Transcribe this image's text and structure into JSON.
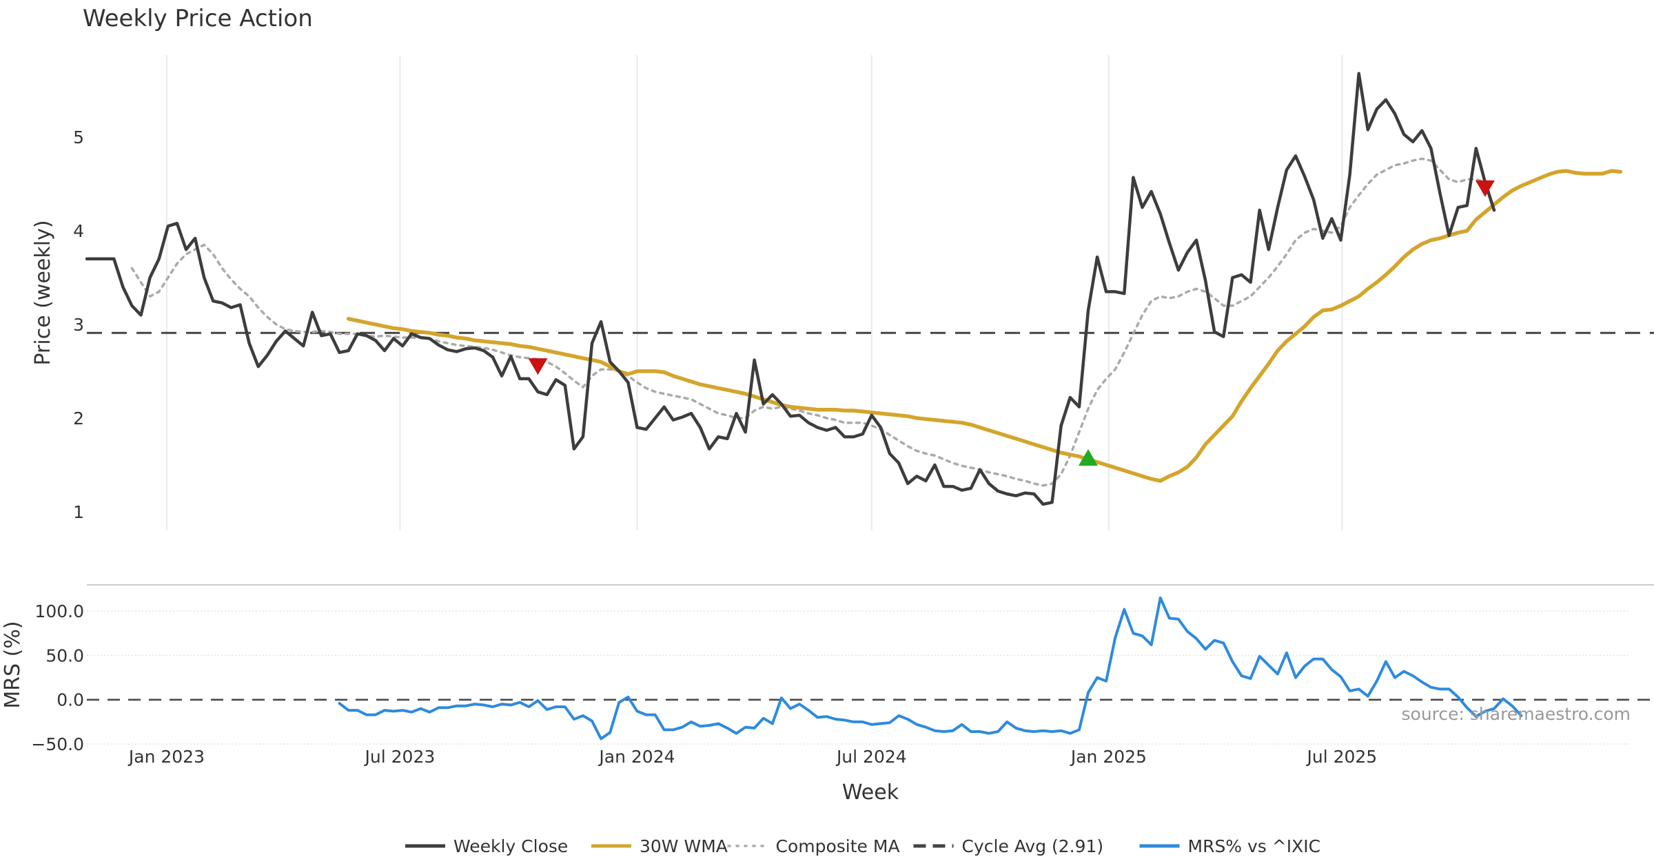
{
  "chart_data": [
    {
      "type": "line",
      "title": "Weekly Price Action",
      "ylabel": "Price (weekly)",
      "ylim": [
        0.8,
        5.95
      ],
      "yticks": [
        1,
        2,
        3,
        4,
        5
      ],
      "grid": "x-only",
      "reference_line": {
        "name": "Cycle Avg (2.91)",
        "value": 2.91
      },
      "markers": [
        {
          "type": "sell",
          "date": "2023-10-16",
          "value": 2.55
        },
        {
          "type": "buy",
          "date": "2024-12-16",
          "value": 1.58
        },
        {
          "type": "sell",
          "date": "2025-10-20",
          "value": 4.45
        }
      ],
      "series": [
        {
          "name": "Weekly Close",
          "color": "#3d3d3d",
          "start": "2022-10-31",
          "values": [
            3.7,
            3.7,
            3.7,
            3.7,
            3.4,
            3.2,
            3.1,
            3.5,
            3.7,
            4.05,
            4.08,
            3.8,
            3.92,
            3.5,
            3.25,
            3.23,
            3.18,
            3.21,
            2.8,
            2.55,
            2.67,
            2.82,
            2.93,
            2.85,
            2.77,
            3.13,
            2.88,
            2.9,
            2.7,
            2.72,
            2.9,
            2.88,
            2.83,
            2.72,
            2.85,
            2.77,
            2.9,
            2.86,
            2.85,
            2.78,
            2.73,
            2.71,
            2.74,
            2.75,
            2.72,
            2.65,
            2.45,
            2.66,
            2.42,
            2.42,
            2.28,
            2.25,
            2.41,
            2.35,
            1.67,
            1.8,
            2.8,
            3.03,
            2.6,
            2.5,
            2.38,
            1.9,
            1.88,
            2.0,
            2.12,
            1.98,
            2.01,
            2.05,
            1.9,
            1.67,
            1.8,
            1.78,
            2.05,
            1.85,
            2.62,
            2.15,
            2.25,
            2.15,
            2.02,
            2.03,
            1.95,
            1.9,
            1.87,
            1.9,
            1.8,
            1.8,
            1.83,
            2.03,
            1.9,
            1.62,
            1.52,
            1.3,
            1.38,
            1.33,
            1.5,
            1.27,
            1.27,
            1.23,
            1.25,
            1.45,
            1.3,
            1.22,
            1.19,
            1.17,
            1.2,
            1.19,
            1.08,
            1.1,
            1.92,
            2.22,
            2.12,
            3.15,
            3.72,
            3.35,
            3.35,
            3.33,
            4.57,
            4.25,
            4.42,
            4.18,
            3.87,
            3.58,
            3.77,
            3.9,
            3.47,
            2.92,
            2.87,
            3.5,
            3.53,
            3.45,
            4.22,
            3.8,
            4.25,
            4.65,
            4.8,
            4.58,
            4.33,
            3.92,
            4.13,
            3.9,
            4.6,
            5.68,
            5.08,
            5.3,
            5.4,
            5.25,
            5.03,
            4.95,
            5.07,
            4.88,
            4.4,
            3.95,
            4.25,
            4.27,
            4.88,
            4.52,
            4.22
          ]
        },
        {
          "name": "30W WMA",
          "color": "#d4a52c",
          "start": "2023-05-22",
          "values": [
            3.06,
            3.04,
            3.02,
            3.0,
            2.98,
            2.96,
            2.95,
            2.93,
            2.92,
            2.91,
            2.89,
            2.88,
            2.86,
            2.85,
            2.83,
            2.82,
            2.81,
            2.8,
            2.79,
            2.77,
            2.76,
            2.74,
            2.72,
            2.7,
            2.68,
            2.66,
            2.64,
            2.62,
            2.6,
            2.55,
            2.5,
            2.47,
            2.5,
            2.5,
            2.5,
            2.49,
            2.45,
            2.42,
            2.39,
            2.36,
            2.34,
            2.32,
            2.3,
            2.28,
            2.26,
            2.23,
            2.2,
            2.17,
            2.14,
            2.12,
            2.11,
            2.1,
            2.09,
            2.09,
            2.09,
            2.08,
            2.08,
            2.07,
            2.06,
            2.05,
            2.04,
            2.03,
            2.02,
            2.0,
            1.99,
            1.98,
            1.97,
            1.96,
            1.95,
            1.93,
            1.9,
            1.87,
            1.84,
            1.81,
            1.78,
            1.75,
            1.72,
            1.69,
            1.66,
            1.63,
            1.61,
            1.59,
            1.56,
            1.53,
            1.5,
            1.47,
            1.44,
            1.41,
            1.38,
            1.35,
            1.33,
            1.38,
            1.42,
            1.48,
            1.58,
            1.72,
            1.82,
            1.92,
            2.02,
            2.18,
            2.32,
            2.45,
            2.58,
            2.72,
            2.82,
            2.9,
            2.98,
            3.08,
            3.15,
            3.16,
            3.2,
            3.25,
            3.3,
            3.38,
            3.45,
            3.53,
            3.62,
            3.72,
            3.8,
            3.86,
            3.9,
            3.92,
            3.95,
            3.98,
            4.0,
            4.12,
            4.2,
            4.28,
            4.36,
            4.43,
            4.48,
            4.52,
            4.56,
            4.6,
            4.63,
            4.64,
            4.62,
            4.61,
            4.61,
            4.61,
            4.64,
            4.63
          ]
        },
        {
          "name": "Composite MA",
          "color": "#aaaaaa",
          "start": "2022-12-05",
          "values": [
            3.6,
            3.45,
            3.3,
            3.35,
            3.5,
            3.65,
            3.75,
            3.8,
            3.85,
            3.75,
            3.6,
            3.48,
            3.38,
            3.3,
            3.18,
            3.08,
            3.0,
            2.95,
            2.93,
            2.92,
            2.92,
            2.93,
            2.92,
            2.9,
            2.9,
            2.9,
            2.88,
            2.87,
            2.88,
            2.87,
            2.86,
            2.86,
            2.86,
            2.85,
            2.82,
            2.8,
            2.78,
            2.77,
            2.76,
            2.75,
            2.73,
            2.7,
            2.67,
            2.65,
            2.64,
            2.63,
            2.6,
            2.55,
            2.48,
            2.4,
            2.33,
            2.45,
            2.52,
            2.52,
            2.5,
            2.45,
            2.38,
            2.32,
            2.28,
            2.26,
            2.24,
            2.22,
            2.2,
            2.15,
            2.1,
            2.05,
            2.03,
            2.0,
            2.0,
            2.08,
            2.12,
            2.1,
            2.12,
            2.1,
            2.08,
            2.05,
            2.03,
            2.0,
            1.98,
            1.95,
            1.95,
            1.95,
            1.92,
            1.88,
            1.82,
            1.76,
            1.7,
            1.65,
            1.62,
            1.6,
            1.56,
            1.52,
            1.49,
            1.47,
            1.45,
            1.42,
            1.4,
            1.38,
            1.35,
            1.33,
            1.3,
            1.28,
            1.3,
            1.4,
            1.6,
            1.85,
            2.1,
            2.3,
            2.42,
            2.52,
            2.7,
            2.9,
            3.1,
            3.25,
            3.3,
            3.28,
            3.3,
            3.35,
            3.38,
            3.35,
            3.28,
            3.2,
            3.2,
            3.25,
            3.3,
            3.4,
            3.5,
            3.62,
            3.75,
            3.9,
            3.98,
            4.02,
            4.0,
            3.98,
            4.05,
            4.25,
            4.38,
            4.5,
            4.6,
            4.65,
            4.7,
            4.72,
            4.75,
            4.77,
            4.75,
            4.65,
            4.55,
            4.52,
            4.55,
            4.55,
            4.52
          ]
        }
      ]
    },
    {
      "type": "line",
      "ylabel": "MRS (%)",
      "xlabel": "Week",
      "ylim": [
        -50,
        125
      ],
      "yticks": [
        "100.0",
        "50.0",
        "0.0",
        "−50.0"
      ],
      "xticks": [
        {
          "label": "Jan 2023",
          "date": "2023-01-01"
        },
        {
          "label": "Jul 2023",
          "date": "2023-07-01"
        },
        {
          "label": "Jan 2024",
          "date": "2024-01-01"
        },
        {
          "label": "Jul 2024",
          "date": "2024-07-01"
        },
        {
          "label": "Jan 2025",
          "date": "2025-01-01"
        },
        {
          "label": "Jul 2025",
          "date": "2025-07-01"
        }
      ],
      "xlim": [
        "2022-10-31",
        "2026-01-12"
      ],
      "reference_line": {
        "value": 0
      },
      "grid": "y-dotted",
      "annotation": "source: sharemaestro.com",
      "series": [
        {
          "name": "MRS% vs ^IXIC",
          "color": "#2e8bdc",
          "start": "2023-05-15",
          "values": [
            -4,
            -12,
            -12,
            -17,
            -17,
            -12,
            -13,
            -12,
            -14,
            -10,
            -14,
            -9,
            -9,
            -7,
            -7,
            -5,
            -6,
            -8,
            -5,
            -6,
            -3,
            -8,
            -1,
            -11,
            -8,
            -8,
            -22,
            -18,
            -24,
            -44,
            -37,
            -3,
            3,
            -13,
            -17,
            -17,
            -34,
            -34,
            -31,
            -25,
            -30,
            -29,
            -27,
            -32,
            -38,
            -31,
            -32,
            -21,
            -27,
            2,
            -10,
            -5,
            -12,
            -20,
            -19,
            -22,
            -23,
            -25,
            -25,
            -28,
            -27,
            -26,
            -18,
            -22,
            -28,
            -31,
            -35,
            -36,
            -35,
            -28,
            -36,
            -36,
            -38,
            -36,
            -25,
            -32,
            -35,
            -36,
            -35,
            -36,
            -35,
            -38,
            -34,
            8,
            25,
            21,
            70,
            102,
            75,
            72,
            62,
            115,
            92,
            91,
            77,
            69,
            57,
            67,
            64,
            43,
            27,
            24,
            49,
            39,
            29,
            53,
            25,
            38,
            46,
            46,
            34,
            26,
            10,
            12,
            4,
            21,
            43,
            25,
            32,
            27,
            20,
            14,
            12,
            12,
            3,
            -9,
            -19,
            -13,
            -10,
            1,
            -7,
            -18
          ]
        }
      ]
    }
  ],
  "legend": {
    "placement": "bottom",
    "items": [
      {
        "label": "Weekly Close",
        "color": "#3d3d3d",
        "style": "solid"
      },
      {
        "label": "30W WMA",
        "color": "#d4a52c",
        "style": "solid"
      },
      {
        "label": "Composite MA",
        "color": "#aaaaaa",
        "style": "dotted"
      },
      {
        "label": "Cycle Avg (2.91)",
        "color": "#444444",
        "style": "dashed"
      },
      {
        "label": "MRS% vs ^IXIC",
        "color": "#2e8bdc",
        "style": "solid"
      }
    ]
  }
}
